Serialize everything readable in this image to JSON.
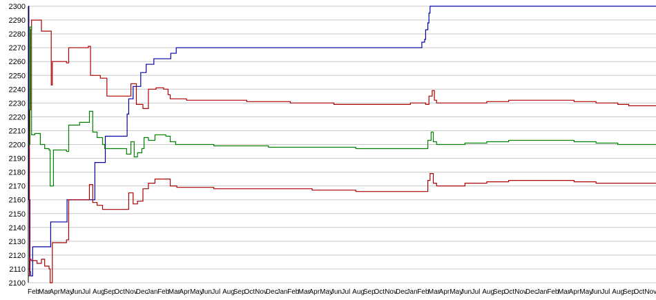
{
  "chart_data": {
    "type": "line",
    "title": "",
    "xlabel": "",
    "ylabel": "",
    "ylim": [
      2100,
      2300
    ],
    "y_ticks": [
      2100,
      2110,
      2120,
      2130,
      2140,
      2150,
      2160,
      2170,
      2180,
      2190,
      2200,
      2210,
      2220,
      2230,
      2240,
      2250,
      2260,
      2270,
      2280,
      2290,
      2300
    ],
    "x_tick_labels": [
      "Feb",
      "Mar",
      "Apr",
      "May",
      "Jun",
      "Jul",
      "Aug",
      "Sep",
      "Oct",
      "Nov",
      "Dec",
      "Jan",
      "Feb",
      "Mar",
      "Apr",
      "May",
      "Jun",
      "Jul",
      "Aug",
      "Sep",
      "Oct",
      "Nov",
      "Dec",
      "Jan",
      "Feb",
      "Mar",
      "Apr",
      "May",
      "Jun",
      "Jul",
      "Aug",
      "Sep",
      "Oct",
      "Nov",
      "Dec",
      "Jan",
      "Feb",
      "Mar",
      "Apr",
      "May",
      "Jun",
      "Jul",
      "Aug",
      "Sep",
      "Oct",
      "Nov",
      "Dec",
      "Jan",
      "Feb",
      "Mar",
      "Apr",
      "May",
      "Jun",
      "Jul",
      "Aug",
      "Sep",
      "Oct",
      "Nov"
    ],
    "grid": true,
    "legend": "none",
    "x_range": [
      0,
      57.5
    ],
    "series": [
      {
        "color": "#0000aa",
        "points": [
          [
            0,
            2300
          ],
          [
            0.05,
            2160
          ],
          [
            0.15,
            2108
          ],
          [
            0.2,
            2105
          ],
          [
            0.4,
            2126
          ],
          [
            2,
            2126
          ],
          [
            2.05,
            2144
          ],
          [
            3.5,
            2144
          ],
          [
            3.55,
            2160
          ],
          [
            6,
            2160
          ],
          [
            6.1,
            2187
          ],
          [
            7,
            2187
          ],
          [
            7.05,
            2206
          ],
          [
            9,
            2206
          ],
          [
            9.05,
            2222
          ],
          [
            9.2,
            2233
          ],
          [
            9.6,
            2242
          ],
          [
            10,
            2242
          ],
          [
            10.3,
            2252
          ],
          [
            10.8,
            2258
          ],
          [
            11.5,
            2262
          ],
          [
            13,
            2262
          ],
          [
            13.05,
            2266
          ],
          [
            13.5,
            2266
          ],
          [
            13.55,
            2270
          ],
          [
            36,
            2270
          ],
          [
            36.05,
            2274
          ],
          [
            36.3,
            2276
          ],
          [
            36.4,
            2283
          ],
          [
            36.6,
            2288
          ],
          [
            36.7,
            2295
          ],
          [
            36.8,
            2300
          ],
          [
            57.5,
            2300
          ]
        ]
      },
      {
        "color": "#aa0000",
        "points": [
          [
            0,
            2105
          ],
          [
            0.1,
            2225
          ],
          [
            0.2,
            2283
          ],
          [
            0.3,
            2290
          ],
          [
            1.2,
            2282
          ],
          [
            1.9,
            2282
          ],
          [
            2.1,
            2243
          ],
          [
            2.2,
            2260
          ],
          [
            3.5,
            2259
          ],
          [
            3.7,
            2270
          ],
          [
            5.5,
            2271
          ],
          [
            5.7,
            2250
          ],
          [
            6.6,
            2248
          ],
          [
            7.2,
            2235
          ],
          [
            8.8,
            2235
          ],
          [
            9.4,
            2244
          ],
          [
            9.9,
            2229
          ],
          [
            10.5,
            2226
          ],
          [
            11.0,
            2240
          ],
          [
            11.7,
            2241
          ],
          [
            12.4,
            2240
          ],
          [
            12.8,
            2236
          ],
          [
            13.0,
            2233
          ],
          [
            14.5,
            2232
          ],
          [
            17,
            2232
          ],
          [
            20,
            2231
          ],
          [
            24,
            2230
          ],
          [
            28,
            2229
          ],
          [
            30,
            2229
          ],
          [
            32,
            2229
          ],
          [
            35,
            2230
          ],
          [
            36.4,
            2229
          ],
          [
            36.7,
            2235
          ],
          [
            37.0,
            2239
          ],
          [
            37.2,
            2232
          ],
          [
            37.4,
            2230
          ],
          [
            40,
            2230
          ],
          [
            42,
            2231
          ],
          [
            44,
            2232
          ],
          [
            47,
            2232
          ],
          [
            50,
            2231
          ],
          [
            52,
            2230
          ],
          [
            54,
            2229
          ],
          [
            55,
            2228
          ],
          [
            57.5,
            2228
          ]
        ]
      },
      {
        "color": "#008000",
        "points": [
          [
            0,
            2200
          ],
          [
            0.15,
            2285
          ],
          [
            0.3,
            2207
          ],
          [
            0.6,
            2208
          ],
          [
            1.1,
            2200
          ],
          [
            1.5,
            2197
          ],
          [
            1.9,
            2196
          ],
          [
            2.0,
            2170
          ],
          [
            2.3,
            2196
          ],
          [
            3.5,
            2195
          ],
          [
            3.7,
            2214
          ],
          [
            4.7,
            2216
          ],
          [
            5.5,
            2216
          ],
          [
            5.6,
            2224
          ],
          [
            5.9,
            2209
          ],
          [
            6.3,
            2205
          ],
          [
            6.8,
            2200
          ],
          [
            7.0,
            2197
          ],
          [
            8.0,
            2197
          ],
          [
            8.8,
            2197
          ],
          [
            9.0,
            2193
          ],
          [
            9.4,
            2202
          ],
          [
            9.7,
            2191
          ],
          [
            10.0,
            2194
          ],
          [
            10.4,
            2197
          ],
          [
            10.6,
            2205
          ],
          [
            11.0,
            2203
          ],
          [
            11.6,
            2207
          ],
          [
            12.6,
            2206
          ],
          [
            13.0,
            2202
          ],
          [
            13.5,
            2200
          ],
          [
            17,
            2199
          ],
          [
            22,
            2198
          ],
          [
            26,
            2198
          ],
          [
            30,
            2197
          ],
          [
            34,
            2197
          ],
          [
            36.4,
            2197
          ],
          [
            36.6,
            2203
          ],
          [
            36.9,
            2209
          ],
          [
            37.1,
            2202
          ],
          [
            37.4,
            2200
          ],
          [
            40,
            2201
          ],
          [
            42,
            2202
          ],
          [
            44,
            2203
          ],
          [
            47,
            2203
          ],
          [
            50,
            2202
          ],
          [
            52,
            2201
          ],
          [
            54,
            2200
          ],
          [
            57.5,
            2200
          ]
        ]
      },
      {
        "color": "#aa0000",
        "points": [
          [
            0,
            2110
          ],
          [
            0.1,
            2117
          ],
          [
            0.25,
            2116
          ],
          [
            0.8,
            2114
          ],
          [
            1.2,
            2117
          ],
          [
            1.5,
            2112
          ],
          [
            1.9,
            2110
          ],
          [
            2.0,
            2100
          ],
          [
            2.2,
            2129
          ],
          [
            3.5,
            2131
          ],
          [
            3.7,
            2160
          ],
          [
            5.2,
            2160
          ],
          [
            5.6,
            2171
          ],
          [
            5.9,
            2158
          ],
          [
            6.3,
            2156
          ],
          [
            6.8,
            2153
          ],
          [
            8.8,
            2153
          ],
          [
            9.2,
            2165
          ],
          [
            9.6,
            2157
          ],
          [
            10.0,
            2159
          ],
          [
            10.5,
            2168
          ],
          [
            11.0,
            2172
          ],
          [
            11.6,
            2175
          ],
          [
            12.6,
            2175
          ],
          [
            13.0,
            2170
          ],
          [
            13.6,
            2169
          ],
          [
            17,
            2168
          ],
          [
            22,
            2168
          ],
          [
            26,
            2167
          ],
          [
            30,
            2166
          ],
          [
            34,
            2166
          ],
          [
            36.4,
            2166
          ],
          [
            36.6,
            2174
          ],
          [
            36.8,
            2179
          ],
          [
            37.1,
            2172
          ],
          [
            37.4,
            2170
          ],
          [
            40,
            2172
          ],
          [
            42,
            2173
          ],
          [
            44,
            2174
          ],
          [
            47,
            2174
          ],
          [
            50,
            2173
          ],
          [
            52,
            2172
          ],
          [
            54,
            2172
          ],
          [
            57.5,
            2172
          ]
        ]
      }
    ]
  }
}
